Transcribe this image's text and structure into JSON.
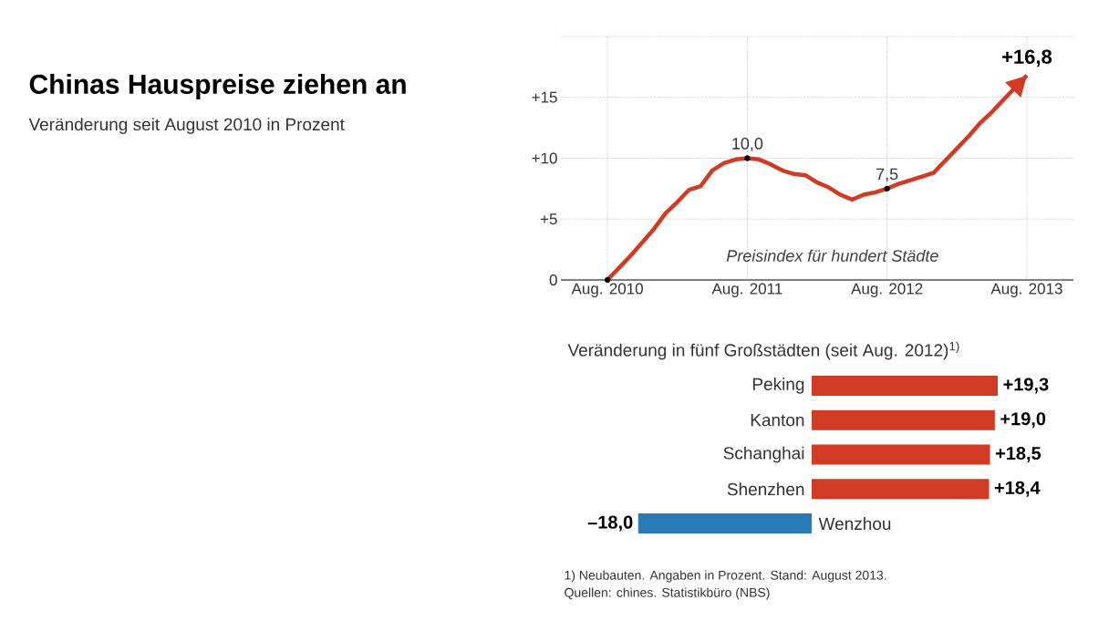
{
  "chart_data": [
    {
      "type": "other",
      "title": "Chinas Hauspreise ziehen an",
      "subtitle": "Veränderung seit August 2010 in Prozent"
    },
    {
      "type": "line",
      "series": [
        {
          "name": "Preisindex für hundert Städte",
          "color": "#d13a25",
          "x": [
            "2010-08",
            "2010-09",
            "2010-10",
            "2010-11",
            "2010-12",
            "2011-01",
            "2011-02",
            "2011-03",
            "2011-04",
            "2011-05",
            "2011-06",
            "2011-07",
            "2011-08",
            "2011-09",
            "2011-10",
            "2011-11",
            "2011-12",
            "2012-01",
            "2012-02",
            "2012-03",
            "2012-04",
            "2012-05",
            "2012-06",
            "2012-07",
            "2012-08",
            "2012-09",
            "2012-10",
            "2012-11",
            "2012-12",
            "2013-01",
            "2013-02",
            "2013-03",
            "2013-04",
            "2013-05",
            "2013-06",
            "2013-07",
            "2013-08"
          ],
          "values": [
            0,
            1.0,
            2.0,
            3.1,
            4.2,
            5.5,
            6.4,
            7.4,
            7.7,
            9.0,
            9.6,
            9.9,
            10.0,
            9.9,
            9.5,
            9.0,
            8.7,
            8.6,
            8.0,
            7.6,
            7.0,
            6.6,
            7.0,
            7.2,
            7.5,
            7.9,
            8.2,
            8.5,
            8.8,
            9.8,
            10.8,
            11.8,
            12.9,
            13.8,
            14.8,
            15.8,
            16.8
          ]
        }
      ],
      "xlim": [
        "2010-04",
        "2013-12"
      ],
      "xticks": [
        {
          "value": "2010-08",
          "label": "Aug. 2010"
        },
        {
          "value": "2011-08",
          "label": "Aug. 2011"
        },
        {
          "value": "2012-08",
          "label": "Aug. 2012"
        },
        {
          "value": "2013-08",
          "label": "Aug. 2013"
        }
      ],
      "ylim": [
        0,
        20
      ],
      "yticks": [
        0,
        {
          "value": 5,
          "label": "+5"
        },
        {
          "value": 10,
          "label": "+10"
        },
        {
          "value": 15,
          "label": "+15"
        },
        {
          "value": 20,
          "label": null
        }
      ],
      "grid": true,
      "annotations": [
        {
          "text": "10,0",
          "x": "2011-08",
          "y": 10.0
        },
        {
          "text": "7,5",
          "x": "2012-08",
          "y": 7.5
        },
        {
          "text": "+16,8",
          "x": "2013-08",
          "y": 16.8
        }
      ]
    },
    {
      "type": "bar",
      "orientation": "horizontal",
      "title": "Veränderung in fünf Großstädten (seit Aug. 2012)$^{1)}$",
      "categories": [
        "Peking",
        "Kanton",
        "Schanghai",
        "Shenzhen",
        "Wenzhou"
      ],
      "values": [
        19.3,
        19.0,
        18.5,
        18.4,
        -18.0
      ],
      "colors": [
        "#d13a25",
        "#d13a25",
        "#d13a25",
        "#d13a25",
        "#2a7ab8"
      ],
      "value_labels": [
        "+19,3",
        "+19,0",
        "+18,5",
        "+18,4",
        "–18,0"
      ],
      "annotations": [
        "1) Neubauten. Angaben in Prozent. Stand: August 2013.",
        "Quellen: chines. Statistikbüro (NBS)"
      ]
    }
  ]
}
